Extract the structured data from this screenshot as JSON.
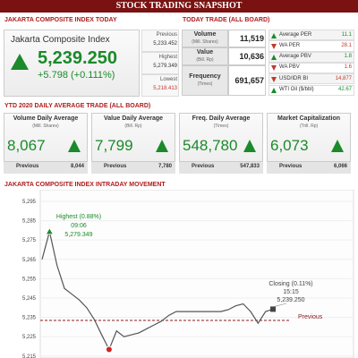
{
  "header": {
    "title": "STOCK TRADING SNAPSHOT"
  },
  "index_today": {
    "heading": "JAKARTA COMPOSITE INDEX TODAY",
    "name": "Jakarta Composite Index",
    "direction": "up",
    "value": "5,239.250",
    "change": "+5.798 (+0.111%)",
    "stats": [
      {
        "label": "Previous",
        "value": "5,233.452"
      },
      {
        "label": "Highest",
        "value": "5,279.349"
      },
      {
        "label": "Lowest",
        "value": "5,218.413",
        "color": "#c0392b"
      }
    ]
  },
  "today_trade": {
    "heading": "TODAY TRADE (ALL BOARD)",
    "rows": [
      {
        "label": "Volume",
        "unit": "(Mill. Shares)",
        "value": "11,519"
      },
      {
        "label": "Value",
        "unit": "(Bill. Rp)",
        "value": "10,636"
      },
      {
        "label": "Frequency",
        "unit": "(Times)",
        "value": "691,657"
      }
    ],
    "indicators": [
      {
        "label": "Average PER",
        "value": "11.1",
        "direction": "up"
      },
      {
        "label": "WA PER",
        "value": "28.1",
        "direction": "down"
      },
      {
        "label": "Average PBV",
        "value": "1.8",
        "direction": "up"
      },
      {
        "label": "WA PBV",
        "value": "1.6",
        "direction": "down"
      },
      {
        "label": "USD/IDR BI",
        "value": "14,877",
        "direction": "down"
      },
      {
        "label": "WTI Oil ($/bbl)",
        "value": "42.67",
        "direction": "up"
      }
    ]
  },
  "ytd": {
    "heading": "YTD 2020 DAILY AVERAGE TRADE (ALL BOARD)",
    "cards": [
      {
        "label": "Volume Daily Average",
        "unit": "(Mill. Shares)",
        "value": "8,067",
        "direction": "up",
        "previous_label": "Previous",
        "previous": "8,044"
      },
      {
        "label": "Value Daily Average",
        "unit": "(Bill. Rp)",
        "value": "7,799",
        "direction": "up",
        "previous_label": "Previous",
        "previous": "7,780"
      },
      {
        "label": "Freq. Daily Average",
        "unit": "(Times)",
        "value": "548,780",
        "direction": "up",
        "previous_label": "Previous",
        "previous": "547,833"
      },
      {
        "label": "Market Capitalization",
        "unit": "(Trill. Rp)",
        "value": "6,073",
        "direction": "up",
        "previous_label": "Previous",
        "previous": "6,066"
      }
    ]
  },
  "chart_data": {
    "type": "line",
    "title": "JAKARTA COMPOSITE INDEX INTRADAY MOVEMENT",
    "color": "#555555",
    "values": [
      5265,
      5279.349,
      5262,
      5250,
      5247,
      5244,
      5240,
      5234,
      5226,
      5218.413,
      5228,
      5225,
      5226,
      5227,
      5229,
      5231,
      5233,
      5236,
      5238,
      5238,
      5238,
      5238,
      5238,
      5238,
      5238,
      5239,
      5241,
      5242,
      5238,
      5232,
      5238,
      5239.25
    ],
    "ylim": [
      5214,
      5301
    ],
    "yticks": [
      {
        "value": 5215,
        "label": "5,215"
      },
      {
        "value": 5225,
        "label": "5,225"
      },
      {
        "value": 5235,
        "label": "5,235"
      },
      {
        "value": 5245,
        "label": "5,245"
      },
      {
        "value": 5255,
        "label": "5,255"
      },
      {
        "value": 5265,
        "label": "5,265"
      },
      {
        "value": 5275,
        "label": "5,275"
      },
      {
        "value": 5285,
        "label": "5,285"
      },
      {
        "value": 5295,
        "label": "5,295"
      }
    ],
    "highest": {
      "label": "Highest (0.88%)",
      "time": "09:06",
      "value": "5,279.349"
    },
    "closing": {
      "label": "Closing (0.11%)",
      "time": "15:15",
      "value": "5,239.250"
    },
    "previous": {
      "label": "Previous",
      "value": 5233.452,
      "color": "#8b1a1a"
    }
  }
}
